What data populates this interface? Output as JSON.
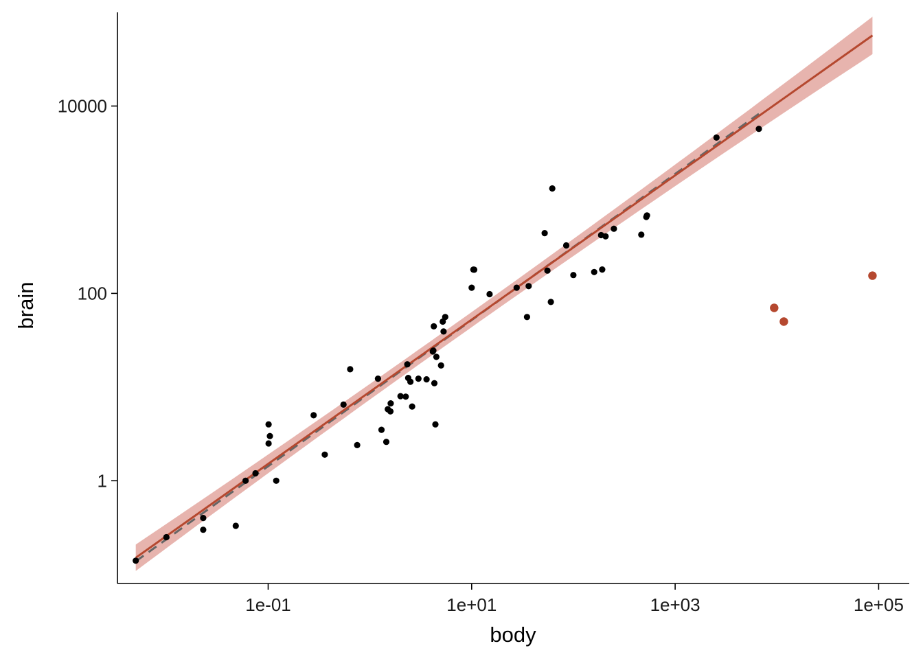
{
  "chart_data": {
    "type": "scatter",
    "xlabel": "body",
    "ylabel": "brain",
    "x_scale": "log10",
    "y_scale": "log10",
    "xlim": [
      0.0033,
      200000
    ],
    "ylim": [
      0.08,
      100000
    ],
    "x_ticks": [
      {
        "value": 0.1,
        "label": "1e-01"
      },
      {
        "value": 10,
        "label": "1e+01"
      },
      {
        "value": 1000,
        "label": "1e+03"
      },
      {
        "value": 100000,
        "label": "1e+05"
      }
    ],
    "y_ticks": [
      {
        "value": 1,
        "label": "1"
      },
      {
        "value": 100,
        "label": "100"
      },
      {
        "value": 10000,
        "label": "10000"
      }
    ],
    "grid": false,
    "colors": {
      "points": "#000000",
      "outliers": "#b5482f",
      "fit_line": "#b5482f",
      "fit_band": "#c0392b",
      "dashed_line": "#666666"
    },
    "points": [
      [
        0.005,
        0.14
      ],
      [
        0.01,
        0.25
      ],
      [
        0.023,
        0.4
      ],
      [
        0.023,
        0.3
      ],
      [
        0.048,
        0.33
      ],
      [
        0.06,
        1.0
      ],
      [
        0.075,
        1.2
      ],
      [
        0.101,
        4.0
      ],
      [
        0.101,
        2.5
      ],
      [
        0.104,
        3.0
      ],
      [
        0.12,
        1.0
      ],
      [
        0.28,
        5.0
      ],
      [
        0.36,
        1.9
      ],
      [
        0.55,
        6.5
      ],
      [
        0.64,
        15.5
      ],
      [
        0.75,
        2.4
      ],
      [
        1.2,
        12.3
      ],
      [
        1.3,
        3.5
      ],
      [
        1.45,
        2.6
      ],
      [
        1.5,
        5.8
      ],
      [
        1.59,
        5.5
      ],
      [
        1.6,
        6.7
      ],
      [
        2.0,
        8.0
      ],
      [
        2.25,
        7.9
      ],
      [
        2.33,
        17.5
      ],
      [
        2.38,
        12.5
      ],
      [
        2.5,
        11.4
      ],
      [
        2.6,
        6.2
      ],
      [
        3.0,
        12.3
      ],
      [
        3.6,
        12.1
      ],
      [
        4.15,
        24.0
      ],
      [
        4.2,
        24.5
      ],
      [
        4.25,
        44.5
      ],
      [
        4.3,
        11.0
      ],
      [
        4.4,
        4.0
      ],
      [
        4.5,
        21.0
      ],
      [
        5.0,
        17.0
      ],
      [
        5.2,
        50.0
      ],
      [
        5.3,
        39.2
      ],
      [
        5.5,
        56.0
      ],
      [
        10.0,
        115.0
      ],
      [
        10.4,
        179.5
      ],
      [
        10.6,
        179.0
      ],
      [
        15.0,
        98.2
      ],
      [
        27.66,
        115.0
      ],
      [
        35.0,
        56.0
      ],
      [
        36.33,
        119.5
      ],
      [
        52.16,
        440.0
      ],
      [
        55.5,
        175.0
      ],
      [
        60.0,
        81.0
      ],
      [
        62.0,
        1320.0
      ],
      [
        85.0,
        325.0
      ],
      [
        100.0,
        157.0
      ],
      [
        160.0,
        169.0
      ],
      [
        187.1,
        419.0
      ],
      [
        192.0,
        180.0
      ],
      [
        207.0,
        406.0
      ],
      [
        250.0,
        490.0
      ],
      [
        465.0,
        423.0
      ],
      [
        521.0,
        655.0
      ],
      [
        529.0,
        680.0
      ],
      [
        2547.0,
        4603.0
      ],
      [
        6654.0,
        5712.0
      ]
    ],
    "outliers": [
      [
        9400.0,
        70.0
      ],
      [
        11700.0,
        50.0
      ],
      [
        87000.0,
        154.5
      ]
    ],
    "fit": {
      "intercept_log10": 0.95,
      "slope": 0.77,
      "x_range": [
        0.005,
        87000
      ],
      "band_halfwidth_log10_min": 0.08,
      "band_halfwidth_log10_max": 0.2
    },
    "dashed_fit": {
      "intercept_log10": 0.935,
      "slope": 0.78,
      "x_range": [
        0.005,
        6654
      ]
    }
  }
}
